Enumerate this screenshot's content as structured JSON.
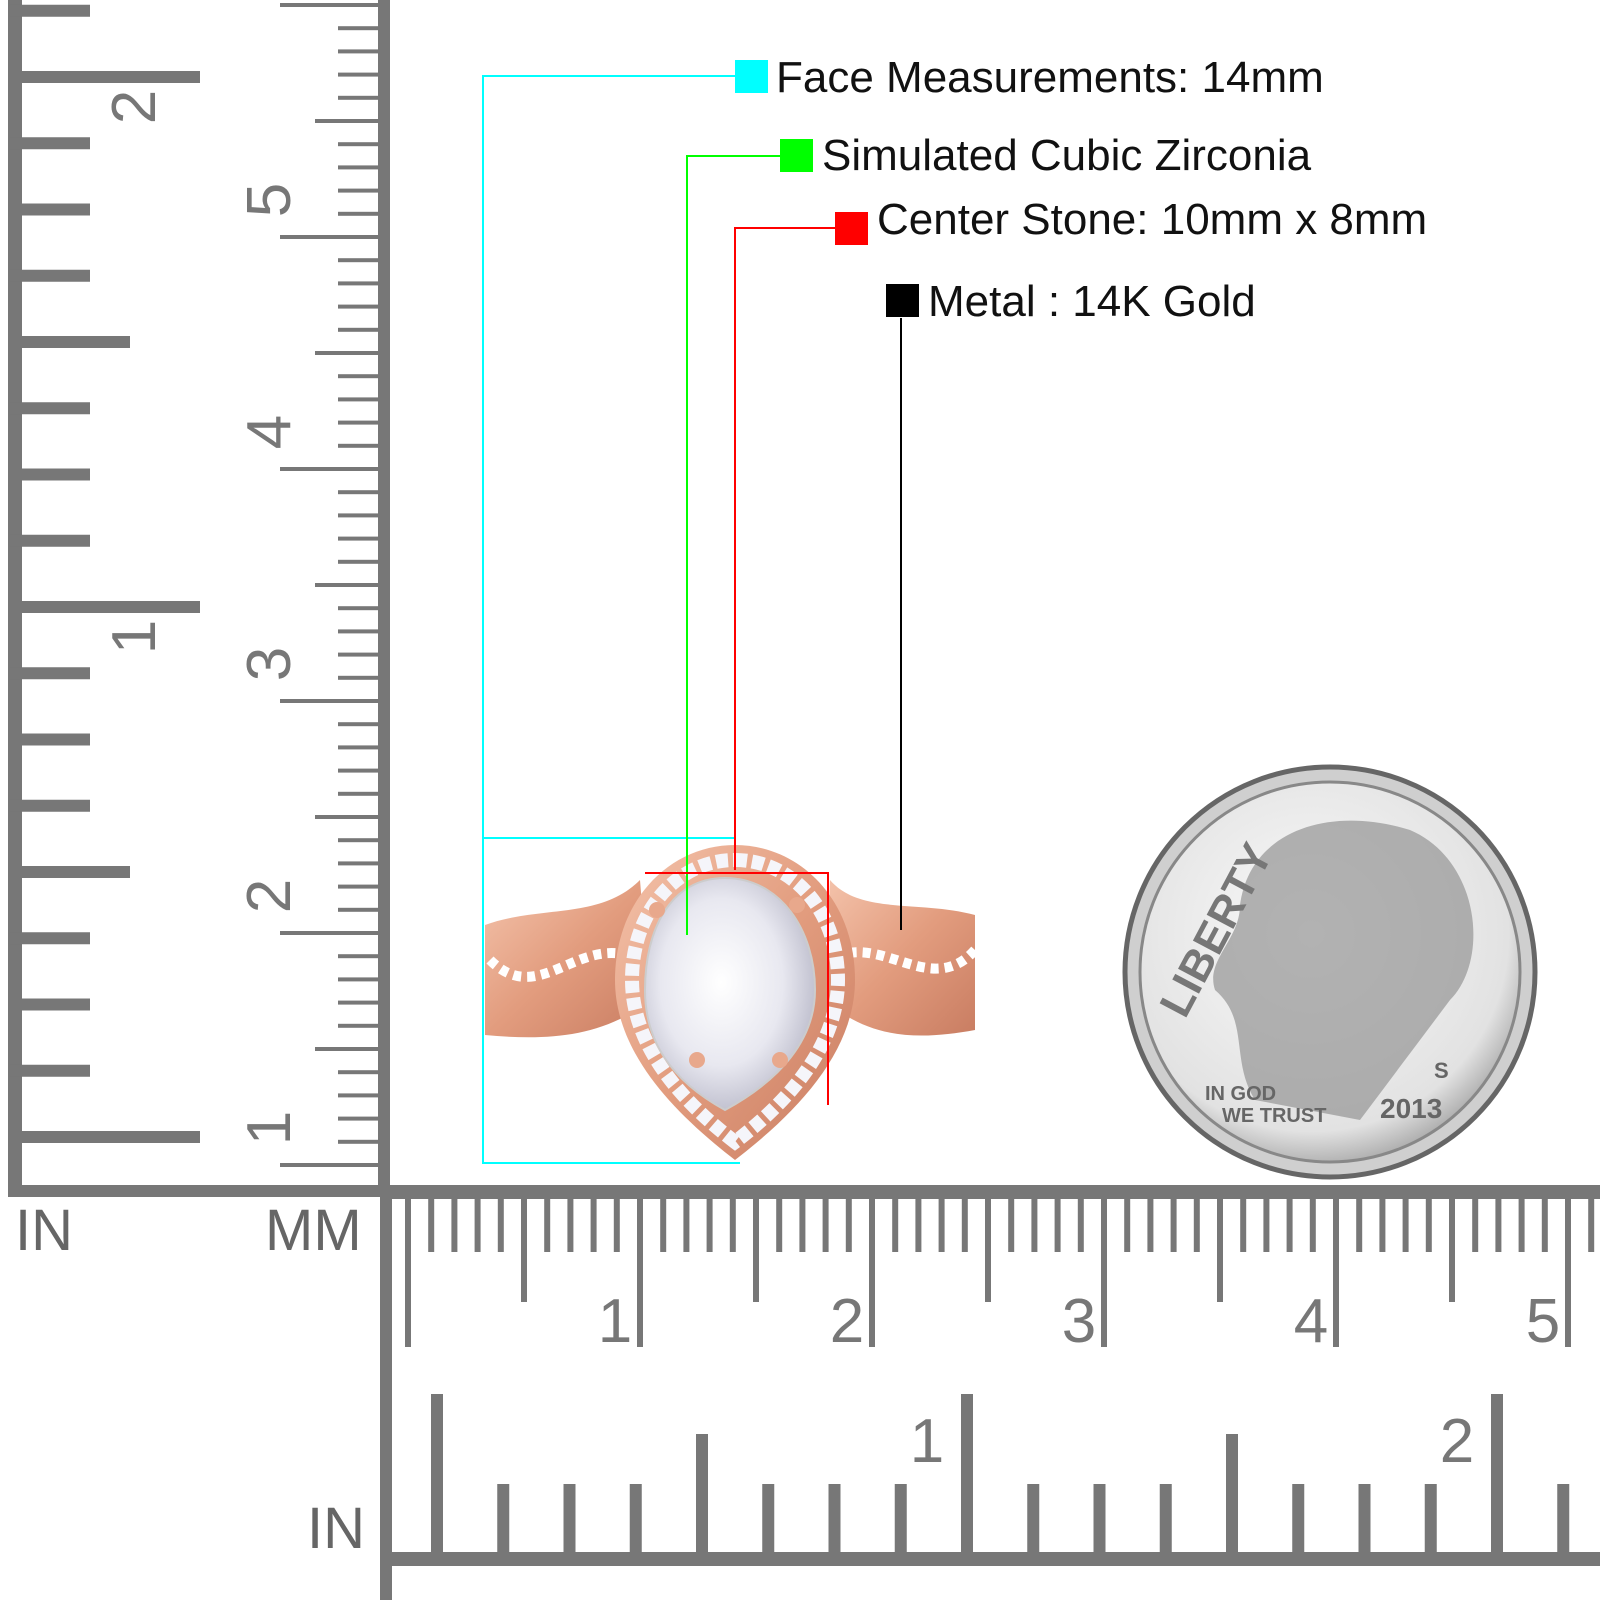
{
  "annotations": [
    {
      "label": "Face Measurements: 14mm",
      "color": "#00ffff"
    },
    {
      "label": "Simulated Cubic Zirconia",
      "color": "#00ff00"
    },
    {
      "label": "Center Stone: 10mm x 8mm",
      "color": "#ff0000"
    },
    {
      "label": "Metal : 14K Gold",
      "color": "#000000"
    }
  ],
  "rulers": {
    "vertical_inch_labels": [
      "1",
      "2"
    ],
    "vertical_mm_labels": [
      "1",
      "2",
      "3",
      "4",
      "5"
    ],
    "vertical_inch_unit": "IN",
    "vertical_mm_unit": "MM",
    "horizontal_mm_labels": [
      "1",
      "2",
      "3",
      "4",
      "5"
    ],
    "horizontal_inch_labels": [
      "1",
      "2"
    ],
    "horizontal_inch_unit": "IN",
    "color": "#777777"
  },
  "coin": {
    "legend": "LIBERTY",
    "motto_line1": "IN GOD",
    "motto_line2": "WE TRUST",
    "year": "2013",
    "mint_mark": "S"
  },
  "ring": {
    "metal_color": "#e8a88c",
    "stone_color": "#f2f2f8"
  }
}
